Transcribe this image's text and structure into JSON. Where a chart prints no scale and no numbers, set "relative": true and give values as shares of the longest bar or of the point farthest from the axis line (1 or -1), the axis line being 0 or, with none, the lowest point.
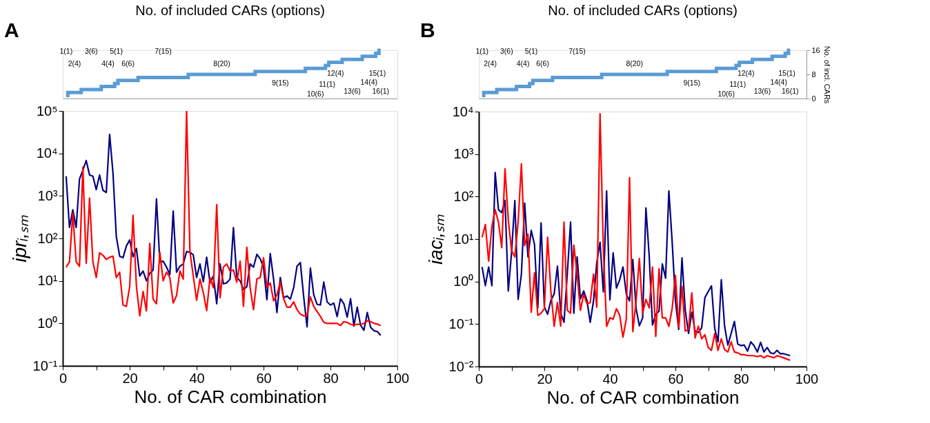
{
  "chart_data": [
    {
      "type": "step",
      "title": "No. of included CARs (options)",
      "relative": true,
      "categories": [
        null,
        null,
        null,
        null,
        null,
        null,
        null,
        null,
        null,
        null,
        null,
        null,
        null,
        null,
        null,
        null,
        null,
        null,
        null,
        null,
        null,
        null,
        null,
        null,
        null,
        null,
        null,
        null,
        null,
        null,
        null,
        null,
        null,
        null,
        null,
        null,
        null,
        null,
        null,
        null,
        null,
        null,
        null,
        null,
        null,
        null,
        null,
        null,
        null,
        null,
        null,
        null,
        null,
        null,
        null,
        null,
        null,
        null,
        null,
        null,
        null,
        null,
        null,
        null,
        null,
        null,
        null,
        null,
        null,
        null,
        null,
        null,
        null,
        null,
        null,
        null,
        null,
        null,
        null,
        null,
        null,
        null,
        null,
        null,
        null,
        null,
        null,
        null,
        null,
        null,
        null,
        null,
        null,
        null,
        null
      ],
      "series": [
        {
          "color": "#5b9bd5",
          "values": [
            0.0625,
            0.125,
            0.125,
            0.125,
            0.125,
            0.1875,
            0.1875,
            0.1875,
            0.1875,
            0.1875,
            0.1875,
            0.25,
            0.25,
            0.25,
            0.25,
            0.3125,
            0.375,
            0.375,
            0.375,
            0.375,
            0.375,
            0.375,
            0.4375,
            0.4375,
            0.4375,
            0.4375,
            0.4375,
            0.4375,
            0.4375,
            0.4375,
            0.4375,
            0.4375,
            0.4375,
            0.4375,
            0.4375,
            0.4375,
            0.4375,
            0.5,
            0.5,
            0.5,
            0.5,
            0.5,
            0.5,
            0.5,
            0.5,
            0.5,
            0.5,
            0.5,
            0.5,
            0.5,
            0.5,
            0.5,
            0.5,
            0.5,
            0.5,
            0.5,
            0.5,
            0.5625,
            0.5625,
            0.5625,
            0.5625,
            0.5625,
            0.5625,
            0.5625,
            0.5625,
            0.5625,
            0.5625,
            0.5625,
            0.5625,
            0.5625,
            0.5625,
            0.5625,
            0.625,
            0.625,
            0.625,
            0.625,
            0.625,
            0.625,
            0.6875,
            0.75,
            0.75,
            0.75,
            0.75,
            0.8125,
            0.8125,
            0.8125,
            0.8125,
            0.8125,
            0.8125,
            0.875,
            0.875,
            0.875,
            0.875,
            0.9375,
            1
          ]
        }
      ],
      "annotations": [
        "A",
        "1(1)",
        "2(4)",
        "3(6)",
        "4(4)",
        "5(1)",
        "6(6)",
        "7(15)",
        "8(20)",
        "9(15)",
        "10(6)",
        "11(1)",
        "12(4)",
        "13(6)",
        "14(4)",
        "15(1)",
        "16(1)"
      ]
    },
    {
      "type": "line",
      "xlabel": "No. of CAR combination",
      "ylabel": "iprᵢ,ₛₘ",
      "x": [
        1,
        2,
        3,
        4,
        5,
        6,
        7,
        8,
        9,
        10,
        11,
        12,
        13,
        14,
        15,
        16,
        17,
        18,
        19,
        20,
        21,
        22,
        23,
        24,
        25,
        26,
        27,
        28,
        29,
        30,
        31,
        32,
        33,
        34,
        35,
        36,
        37,
        38,
        39,
        40,
        41,
        42,
        43,
        44,
        45,
        46,
        47,
        48,
        49,
        50,
        51,
        52,
        53,
        54,
        55,
        56,
        57,
        58,
        59,
        60,
        61,
        62,
        63,
        64,
        65,
        66,
        67,
        68,
        69,
        70,
        71,
        72,
        73,
        74,
        75,
        76,
        77,
        78,
        79,
        80,
        81,
        82,
        83,
        84,
        85,
        86,
        87,
        88,
        89,
        90,
        91,
        92,
        93,
        94,
        95
      ],
      "xlim": [
        0,
        100
      ],
      "xticks": [
        0,
        {
          "value": 10,
          "label": null
        },
        20,
        {
          "value": 30,
          "label": null
        },
        40,
        {
          "value": 50,
          "label": null
        },
        60,
        {
          "value": 70,
          "label": null
        },
        80,
        {
          "value": 90,
          "label": null
        },
        100
      ],
      "log": true,
      "ylim": [
        0.1,
        100000
      ],
      "yticks": [
        {
          "value": 0.1,
          "label": "10⁻¹"
        },
        {
          "value": 1,
          "label": "10⁰"
        },
        {
          "value": 10,
          "label": "10¹"
        },
        {
          "value": 100,
          "label": "10²"
        },
        {
          "value": 1000,
          "label": "10³"
        },
        {
          "value": 10000,
          "label": "10⁴"
        },
        {
          "value": 100000,
          "label": "10⁵"
        }
      ],
      "series": [
        {
          "color": "#000080",
          "values": [
            2900,
            180,
            470,
            180,
            2500,
            4000,
            6800,
            3100,
            2900,
            1400,
            3100,
            1350,
            1200,
            28000,
            3500,
            110,
            38,
            35,
            66,
            92,
            37,
            58,
            13,
            17,
            10,
            15,
            18,
            850,
            28,
            29,
            21,
            14,
            440,
            16,
            22,
            25,
            49,
            47,
            41,
            12,
            25,
            9.5,
            36,
            9,
            13,
            2.9,
            25,
            8.5,
            9,
            11,
            180,
            12,
            10,
            6.2,
            7.3,
            25,
            21,
            42,
            33,
            21,
            3.6,
            44,
            11,
            1.8,
            12,
            4,
            4.4,
            3.7,
            6.9,
            22,
            27,
            4.2,
            0.83,
            20,
            4.7,
            2.8,
            2.7,
            9.4,
            3.2,
            2.7,
            3.0,
            1.45,
            3.8,
            2.9,
            1.4,
            3.8,
            0.87,
            2.4,
            0.9,
            0.69,
            1.8,
            0.81,
            0.67,
            0.64,
            0.52
          ]
        },
        {
          "color": "#ff0000",
          "values": [
            21,
            28,
            390,
            28,
            22,
            4700,
            26,
            890,
            28,
            12,
            46,
            40,
            32,
            36,
            38,
            12,
            16,
            2.7,
            2.5,
            7.3,
            350,
            7.6,
            1.5,
            5.6,
            1.96,
            76,
            3.7,
            2.9,
            47,
            10,
            16,
            12,
            3.0,
            4.5,
            17,
            11,
            100000,
            49,
            13,
            3.5,
            11,
            5.3,
            2.0,
            12,
            6.9,
            620,
            4,
            21,
            25,
            17,
            18,
            9.3,
            29,
            2.5,
            62,
            6.9,
            2.1,
            11,
            12,
            35,
            7.1,
            8.9,
            3.4,
            4.7,
            9.2,
            3.8,
            2.4,
            2.4,
            3.2,
            2.1,
            1.65,
            1.5,
            1.5,
            4.2,
            2.5,
            1.9,
            1.45,
            1.05,
            1.0,
            1.0,
            1.0,
            1.0,
            0.89,
            1.1,
            1.05,
            0.95,
            0.91,
            0.95,
            0.94,
            1.0,
            1.15,
            1.1,
            1.0,
            0.96,
            0.89
          ]
        }
      ]
    },
    {
      "type": "step",
      "title": "No. of included CARs (options)",
      "categories": [
        null,
        null,
        null,
        null,
        null,
        null,
        null,
        null,
        null,
        null,
        null,
        null,
        null,
        null,
        null,
        null,
        null,
        null,
        null,
        null,
        null,
        null,
        null,
        null,
        null,
        null,
        null,
        null,
        null,
        null,
        null,
        null,
        null,
        null,
        null,
        null,
        null,
        null,
        null,
        null,
        null,
        null,
        null,
        null,
        null,
        null,
        null,
        null,
        null,
        null,
        null,
        null,
        null,
        null,
        null,
        null,
        null,
        null,
        null,
        null,
        null,
        null,
        null,
        null,
        null,
        null,
        null,
        null,
        null,
        null,
        null,
        null,
        null,
        null,
        null,
        null,
        null,
        null,
        null,
        null,
        null,
        null,
        null,
        null,
        null,
        null,
        null,
        null,
        null,
        null,
        null,
        null,
        null,
        null,
        null
      ],
      "ylim": [
        0,
        16
      ],
      "yticks": [
        0,
        8,
        16
      ],
      "ylabel": "No. of incl. CARs",
      "series": [
        {
          "color": "#5b9bd5",
          "values": [
            1,
            2,
            2,
            2,
            2,
            3,
            3,
            3,
            3,
            3,
            3,
            4,
            4,
            4,
            4,
            5,
            6,
            6,
            6,
            6,
            6,
            6,
            7,
            7,
            7,
            7,
            7,
            7,
            7,
            7,
            7,
            7,
            7,
            7,
            7,
            7,
            7,
            8,
            8,
            8,
            8,
            8,
            8,
            8,
            8,
            8,
            8,
            8,
            8,
            8,
            8,
            8,
            8,
            8,
            8,
            8,
            8,
            9,
            9,
            9,
            9,
            9,
            9,
            9,
            9,
            9,
            9,
            9,
            9,
            9,
            9,
            9,
            10,
            10,
            10,
            10,
            10,
            10,
            11,
            12,
            12,
            12,
            12,
            13,
            13,
            13,
            13,
            13,
            13,
            14,
            14,
            14,
            14,
            15,
            16
          ]
        }
      ],
      "annotations": [
        "B",
        "1(1)",
        "2(4)",
        "3(6)",
        "4(4)",
        "5(1)",
        "6(6)",
        "7(15)",
        "8(20)",
        "9(15)",
        "10(6)",
        "11(1)",
        "12(4)",
        "13(6)",
        "14(4)",
        "15(1)",
        "16(1)"
      ]
    },
    {
      "type": "line",
      "xlabel": "No. of CAR combination",
      "ylabel": "iacᵢ,ₛₘ",
      "x": [
        1,
        2,
        3,
        4,
        5,
        6,
        7,
        8,
        9,
        10,
        11,
        12,
        13,
        14,
        15,
        16,
        17,
        18,
        19,
        20,
        21,
        22,
        23,
        24,
        25,
        26,
        27,
        28,
        29,
        30,
        31,
        32,
        33,
        34,
        35,
        36,
        37,
        38,
        39,
        40,
        41,
        42,
        43,
        44,
        45,
        46,
        47,
        48,
        49,
        50,
        51,
        52,
        53,
        54,
        55,
        56,
        57,
        58,
        59,
        60,
        61,
        62,
        63,
        64,
        65,
        66,
        67,
        68,
        69,
        70,
        71,
        72,
        73,
        74,
        75,
        76,
        77,
        78,
        79,
        80,
        81,
        82,
        83,
        84,
        85,
        86,
        87,
        88,
        89,
        90,
        91,
        92,
        93,
        94,
        95
      ],
      "xlim": [
        0,
        100
      ],
      "xticks": [
        0,
        {
          "value": 10,
          "label": null
        },
        20,
        {
          "value": 30,
          "label": null
        },
        40,
        {
          "value": 50,
          "label": null
        },
        60,
        {
          "value": 70,
          "label": null
        },
        80,
        {
          "value": 90,
          "label": null
        },
        100
      ],
      "log": true,
      "ylim": [
        0.01,
        10000
      ],
      "yticks": [
        {
          "value": 0.01,
          "label": "10⁻²"
        },
        {
          "value": 0.1,
          "label": "10⁻¹"
        },
        {
          "value": 1,
          "label": "10⁰"
        },
        {
          "value": 10,
          "label": "10¹"
        },
        {
          "value": 100,
          "label": "10²"
        },
        {
          "value": 1000,
          "label": "10³"
        },
        {
          "value": 10000,
          "label": "10⁴"
        }
      ],
      "series": [
        {
          "color": "#000080",
          "values": [
            2.2,
            0.8,
            2.2,
            0.8,
            370,
            49,
            42,
            81,
            0.6,
            4.9,
            81,
            0.38,
            1.5,
            70,
            3.8,
            16,
            7.5,
            0.24,
            24,
            0.25,
            0.17,
            0.36,
            0.51,
            2.3,
            0.18,
            0.11,
            1.5,
            25,
            0.18,
            3.8,
            0.39,
            0.6,
            0.36,
            0.11,
            0.35,
            2.8,
            8.4,
            0.57,
            136,
            0.37,
            4.7,
            0.7,
            1.1,
            2.2,
            0.51,
            0.35,
            3.3,
            0.23,
            0.091,
            0.14,
            54,
            4.0,
            0.095,
            0.17,
            0.2,
            2.6,
            1.2,
            136,
            8.8,
            0.35,
            0.075,
            3.6,
            0.21,
            0.06,
            0.19,
            0.068,
            0.063,
            0.081,
            0.42,
            0.58,
            0.79,
            0.078,
            0.038,
            1.1,
            0.089,
            0.032,
            0.06,
            0.115,
            0.034,
            0.031,
            0.032,
            0.023,
            0.038,
            0.031,
            0.022,
            0.037,
            0.022,
            0.028,
            0.021,
            0.02,
            0.024,
            0.02,
            0.02,
            0.019,
            0.018
          ]
        },
        {
          "color": "#ff0000",
          "values": [
            11,
            22,
            3.0,
            20,
            49,
            25,
            6.3,
            450,
            28,
            5.4,
            3.8,
            25,
            590,
            7,
            13,
            0.19,
            1.6,
            0.16,
            0.18,
            0.23,
            11,
            0.58,
            0.088,
            0.32,
            0.089,
            25,
            0.21,
            0.18,
            7.2,
            1.5,
            0.21,
            0.5,
            0.3,
            0.32,
            1.5,
            0.25,
            8900,
            6,
            0.088,
            0.14,
            0.13,
            0.23,
            0.16,
            0.049,
            0.13,
            280,
            0.066,
            0.35,
            3.5,
            0.18,
            0.38,
            0.24,
            2.2,
            0.051,
            2.0,
            0.14,
            0.14,
            0.088,
            0.23,
            1.4,
            0.083,
            0.77,
            0.068,
            0.075,
            0.54,
            0.047,
            0.089,
            0.045,
            0.056,
            0.028,
            0.024,
            0.06,
            0.024,
            0.045,
            0.025,
            0.022,
            0.038,
            0.022,
            0.021,
            0.019,
            0.019,
            0.018,
            0.018,
            0.018,
            0.017,
            0.018,
            0.016,
            0.018,
            0.017,
            0.016,
            0.018,
            0.017,
            0.016,
            0.015,
            0.014
          ]
        }
      ]
    }
  ]
}
